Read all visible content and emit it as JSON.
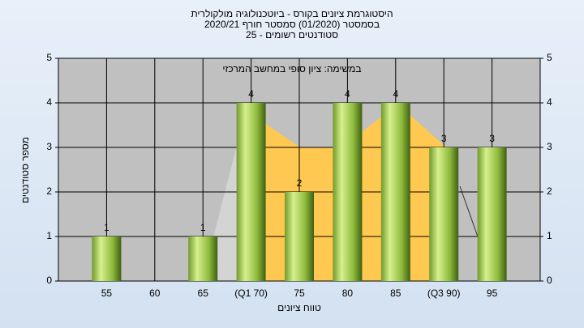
{
  "chart_data": {
    "type": "bar",
    "title": "היסטוגרמת ציונים בקורס - ביוטכנולוגיה מולקולרית",
    "subtitle": "בסמסטר  (01/2020)  סמסטר חורף  2020/21",
    "subtitle2": "סטודנטים רשומים - 25",
    "annotation": "במשימה: ציון סופי במחשב המרכזי",
    "x_label": "טווח ציונים",
    "y_label": "מספר סטודנטים",
    "categories": [
      "55",
      "60",
      "65",
      "(Q1 70)",
      "75",
      "80",
      "85",
      "(Q3 90)",
      "95"
    ],
    "values": [
      1,
      0,
      1,
      4,
      2,
      4,
      4,
      3,
      3
    ],
    "color": "#9ccc4a",
    "ylim": [
      0,
      5
    ],
    "yticks": [
      0,
      1,
      2,
      3,
      4,
      5
    ],
    "y2lim": [
      0,
      5
    ],
    "y2ticks": [
      0,
      1,
      2,
      3,
      4,
      5
    ],
    "grid": true
  }
}
